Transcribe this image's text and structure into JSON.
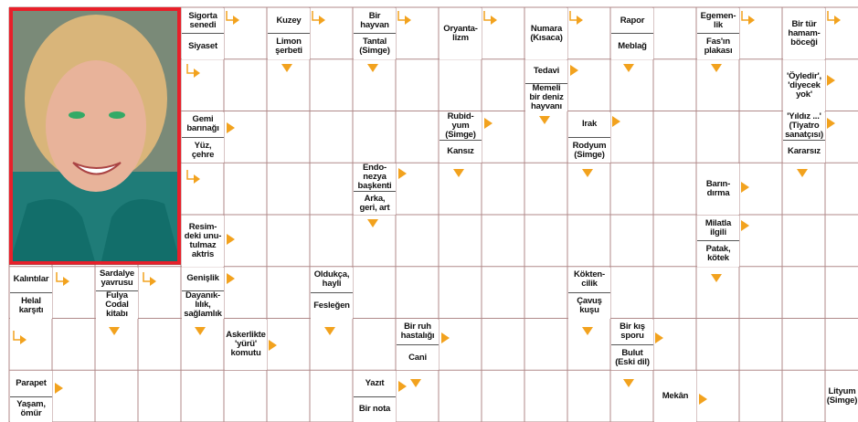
{
  "grid": {
    "rows": [
      [
        null,
        null,
        null,
        null,
        [
          "Sigorta\nsenedi",
          "Siyaset"
        ],
        null,
        [
          "Kuzey",
          "Limon\nşerbeti"
        ],
        null,
        [
          "Bir\nhayvan",
          "Tantal\n(Simge)"
        ],
        null,
        [
          "Oryanta-\nlizm"
        ],
        null,
        [
          "Numara\n(Kısaca)"
        ],
        null,
        [
          "Rapor",
          "Meblağ"
        ],
        null,
        [
          "Egemen-\nlik",
          "Fas'ın\nplakası"
        ],
        null,
        [
          "Bir tür\nhamam-\nböceği"
        ],
        null
      ],
      [
        null,
        null,
        null,
        null,
        null,
        null,
        null,
        null,
        null,
        null,
        null,
        null,
        [
          "Tedavi",
          "Memeli\nbir deniz\nhayvanı"
        ],
        null,
        null,
        null,
        null,
        null,
        [
          "'Öyledir',\n'diyecek\nyok'"
        ],
        null
      ],
      [
        null,
        null,
        null,
        null,
        [
          "Gemi\nbarınağı",
          "Yüz,\nçehre"
        ],
        null,
        null,
        null,
        null,
        null,
        [
          "Rubid-\nyum\n(Simge)",
          "Kansız"
        ],
        null,
        null,
        [
          "Irak",
          "Rodyum\n(Simge)"
        ],
        null,
        null,
        null,
        null,
        [
          "'Yıldız ...'\n(Tiyatro\nsanatçısı)",
          "Kararsız"
        ],
        null
      ],
      [
        null,
        null,
        null,
        null,
        null,
        null,
        null,
        null,
        [
          "Endo-\nnezya\nbaşkenti",
          "Arka,\ngeri, art"
        ],
        null,
        null,
        null,
        null,
        null,
        null,
        null,
        [
          "Barın-\ndırma"
        ],
        null,
        null,
        null
      ],
      [
        null,
        null,
        null,
        null,
        [
          "Resim-\ndeki unu-\ntulmaz\naktris"
        ],
        null,
        null,
        null,
        null,
        null,
        null,
        null,
        null,
        null,
        null,
        null,
        [
          "Milatla\nilgili",
          "Patak,\nkötek"
        ],
        null,
        null,
        null
      ],
      [
        [
          "Kalıntılar",
          "Helal\nkarşıtı"
        ],
        null,
        [
          "Sardalye\nyavrusu",
          "Fulya\nCodal\nkitabı"
        ],
        null,
        [
          "Genişlik",
          "Dayanık-\nlılık,\nsağlamlık"
        ],
        null,
        null,
        [
          "Oldukça,\nhayli",
          "Fesleğen"
        ],
        null,
        null,
        null,
        null,
        null,
        [
          "Kökten-\ncilik",
          "Çavuş\nkuşu"
        ],
        null,
        null,
        null,
        null,
        null,
        null
      ],
      [
        null,
        null,
        null,
        null,
        null,
        [
          "Askerlikte\n'yürü'\nkomutu"
        ],
        null,
        null,
        null,
        [
          "Bir ruh\nhastalığı",
          "Cani"
        ],
        null,
        null,
        null,
        null,
        [
          "Bir kış\nsporu",
          "Bulut\n(Eski dil)"
        ],
        null,
        null,
        null,
        null,
        null
      ],
      [
        [
          "Parapet",
          "Yaşam,\nömür"
        ],
        null,
        null,
        null,
        null,
        null,
        null,
        null,
        [
          "Yazıt",
          "Bir nota"
        ],
        null,
        null,
        null,
        null,
        null,
        null,
        [
          "Mekân"
        ],
        null,
        null,
        null,
        [
          "Lityum\n(Simge)"
        ]
      ]
    ]
  }
}
